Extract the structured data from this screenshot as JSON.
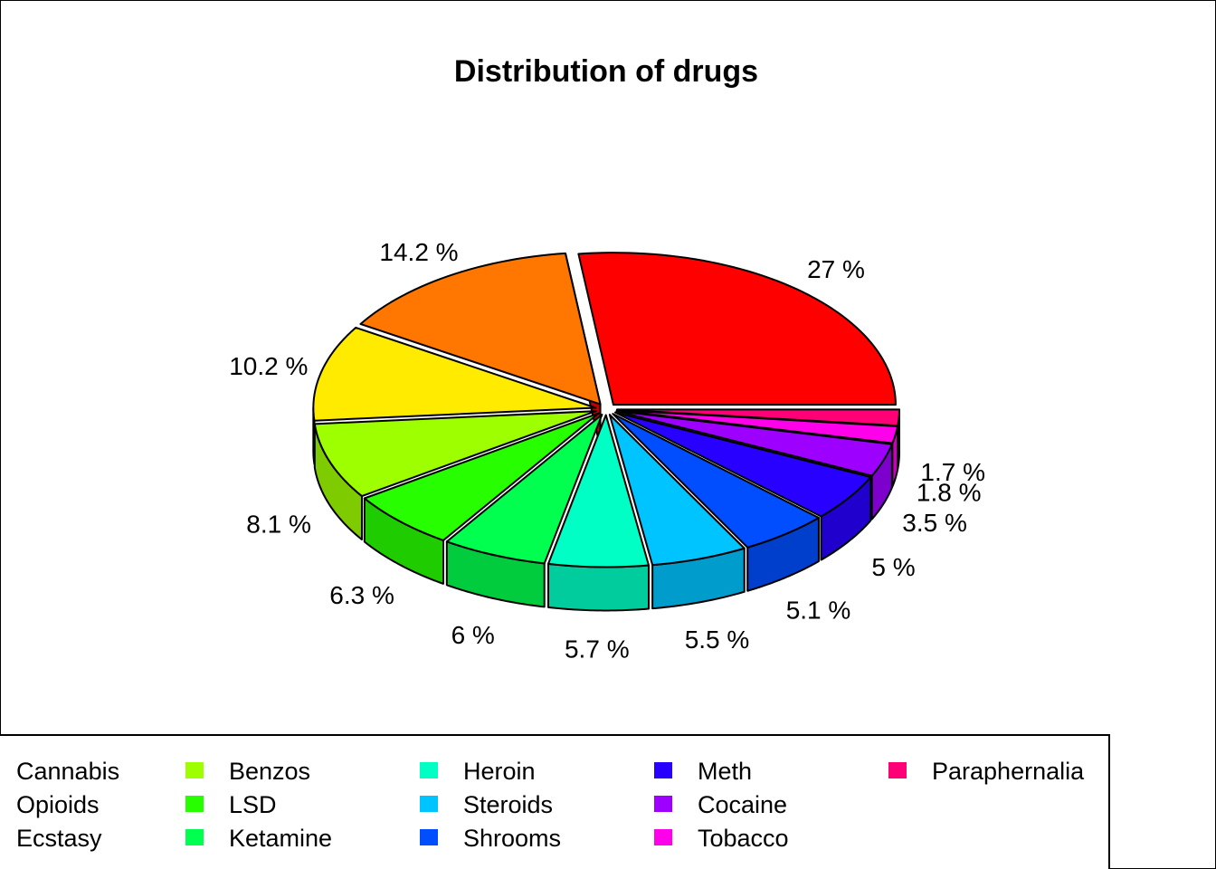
{
  "chart_data": {
    "type": "pie",
    "title": "Distribution of drugs",
    "categories": [
      "Cannabis",
      "Opioids",
      "Ecstasy",
      "Benzos",
      "LSD",
      "Ketamine",
      "Heroin",
      "Steroids",
      "Shrooms",
      "Meth",
      "Cocaine",
      "Tobacco",
      "Paraphernalia"
    ],
    "values": [
      27,
      14.2,
      10.2,
      8.1,
      6.3,
      6,
      5.7,
      5.5,
      5.1,
      5,
      3.5,
      1.8,
      1.7
    ],
    "labels": [
      "27 %",
      "14.2 %",
      "10.2 %",
      "8.1 %",
      "6.3 %",
      "6 %",
      "5.7 %",
      "5.5 %",
      "5.1 %",
      "5 %",
      "3.5 %",
      "1.8 %",
      "1.7 %"
    ],
    "colors": [
      "#FF0000",
      "#FF7600",
      "#FFEB00",
      "#9DFF00",
      "#27FF00",
      "#00FF4E",
      "#00FFC4",
      "#00C4FF",
      "#004EFF",
      "#2700FF",
      "#9D00FF",
      "#FF00EB",
      "#FF0076"
    ],
    "style": "3d exploded pie",
    "legend_position": "bottom",
    "legend_columns": 5
  }
}
